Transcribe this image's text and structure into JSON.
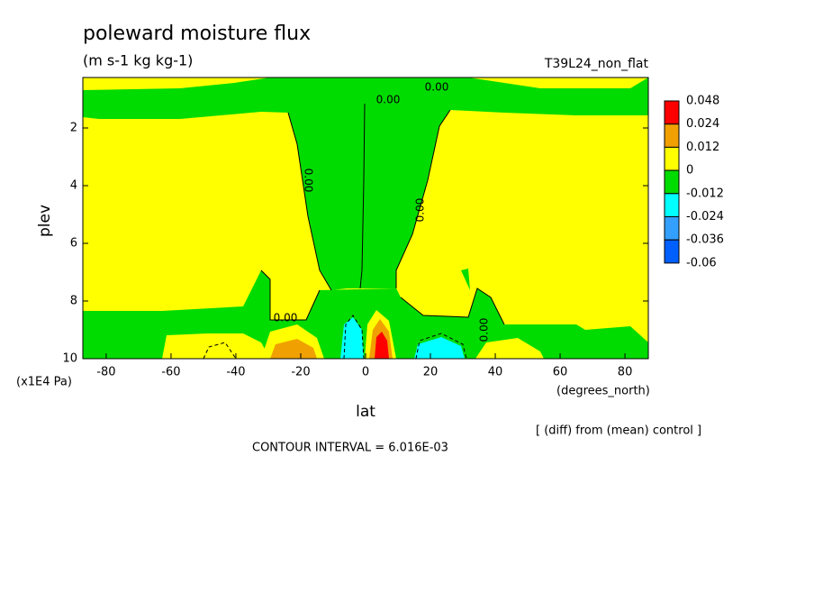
{
  "chart_data": {
    "type": "contour",
    "title": "poleward moisture flux",
    "subtitle": "(m s-1 kg kg-1)",
    "run_label": "T39L24_non_flat",
    "xlabel": "lat",
    "x_unit_label": "(degrees_north)",
    "ylabel": "plev",
    "y_unit_label": "(x1E4 Pa)",
    "note": "[ (diff) from (mean) control ]",
    "contour_interval_label": "CONTOUR INTERVAL = 6.016E-03",
    "xlim": [
      -87.2,
      87.2
    ],
    "xticks": [
      -80,
      -60,
      -40,
      -20,
      0,
      20,
      40,
      60,
      80
    ],
    "ylim": [
      10,
      0.25
    ],
    "yticks": [
      2,
      4,
      6,
      8,
      10
    ],
    "contour_labels": [
      {
        "value": 0,
        "label": "0.00"
      },
      {
        "value": 0,
        "label": "0.00"
      },
      {
        "value": 0,
        "label": "0.00"
      },
      {
        "value": 0,
        "label": "0.00"
      },
      {
        "value": 0,
        "label": "0.00"
      },
      {
        "value": 0,
        "label": "0.00"
      }
    ],
    "colorbar": {
      "levels": [
        0.048,
        0.024,
        0.012,
        0,
        -0.012,
        -0.024,
        -0.036,
        -0.06
      ],
      "colors": [
        "#ff0000",
        "#f0a000",
        "#ffff00",
        "#00dc00",
        "#00ffff",
        "#33a0ff",
        "#0060ff"
      ]
    }
  }
}
